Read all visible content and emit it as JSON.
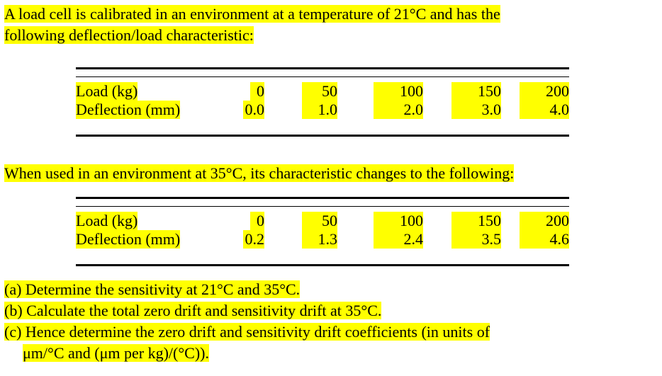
{
  "intro": {
    "line1": "A load cell is calibrated in an environment at a temperature of 21°C and has the",
    "line2": "following deflection/load characteristic:"
  },
  "table1": {
    "rows": [
      {
        "label": "Load (kg)",
        "values": [
          "0",
          "50",
          "100",
          "150",
          "200"
        ]
      },
      {
        "label": "Deflection (mm)",
        "values": [
          "0.0",
          "1.0",
          "2.0",
          "3.0",
          "4.0"
        ]
      }
    ]
  },
  "middle": "When used in an environment at 35°C, its characteristic changes to the following:",
  "table2": {
    "rows": [
      {
        "label": "Load (kg)",
        "values": [
          "0",
          "50",
          "100",
          "150",
          "200"
        ]
      },
      {
        "label": "Deflection (mm)",
        "values": [
          "0.2",
          "1.3",
          "2.4",
          "3.5",
          "4.6"
        ]
      }
    ]
  },
  "questions": {
    "a": "(a) Determine the sensitivity at 21°C and 35°C.",
    "b": "(b) Calculate the total zero drift and sensitivity drift at 35°C.",
    "c1": "(c) Hence determine the zero drift and sensitivity drift coefficients (in units of",
    "c2": "μm/°C and (μm per kg)/(°C))."
  },
  "colors": {
    "highlight": "#ffff00",
    "text": "#000000"
  }
}
